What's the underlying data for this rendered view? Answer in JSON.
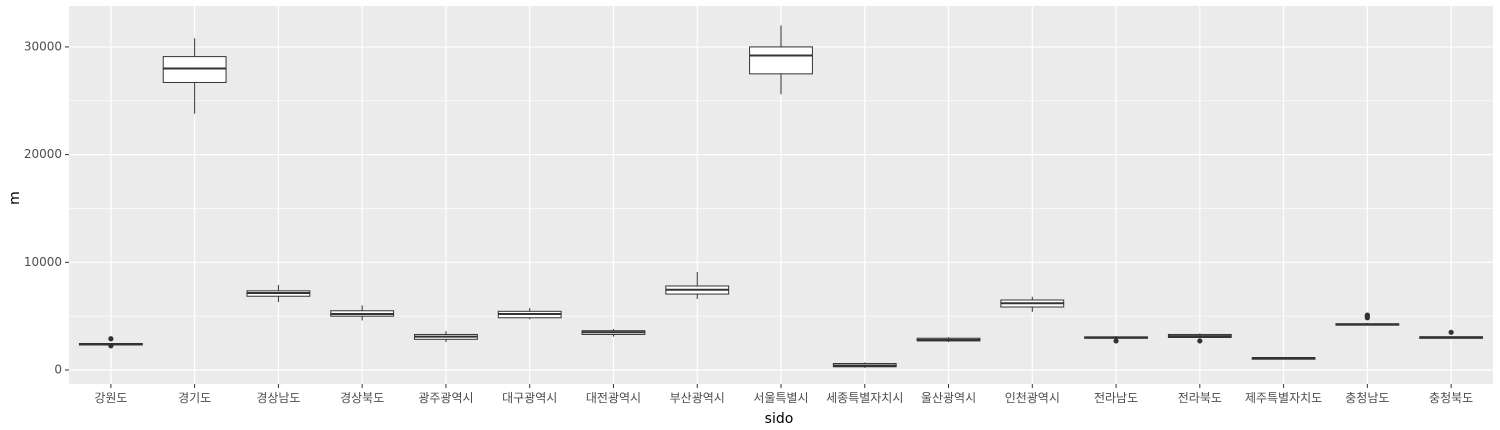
{
  "chart_data": {
    "type": "boxplot",
    "title": "",
    "xlabel": "sido",
    "ylabel": "m",
    "ylim": [
      -1300,
      33800
    ],
    "yticks": [
      0,
      10000,
      20000,
      30000
    ],
    "ytick_labels": [
      "0",
      "10000",
      "20000",
      "30000"
    ],
    "grid": true,
    "legend": "none",
    "categories": [
      "강원도",
      "경기도",
      "경상남도",
      "경상북도",
      "광주광역시",
      "대구광역시",
      "대전광역시",
      "부산광역시",
      "서울특별시",
      "세종특별자치시",
      "울산광역시",
      "인천광역시",
      "전라남도",
      "전라북도",
      "제주특별자치도",
      "충청남도",
      "충청북도"
    ],
    "boxes": [
      {
        "min": 2380,
        "q1": 2380,
        "median": 2420,
        "q3": 2460,
        "max": 2480,
        "outliers": [
          2250,
          2900
        ]
      },
      {
        "min": 23800,
        "q1": 26700,
        "median": 28000,
        "q3": 29100,
        "max": 30800,
        "outliers": []
      },
      {
        "min": 6300,
        "q1": 6850,
        "median": 7150,
        "q3": 7350,
        "max": 7900,
        "outliers": []
      },
      {
        "min": 4600,
        "q1": 5000,
        "median": 5200,
        "q3": 5500,
        "max": 6000,
        "outliers": []
      },
      {
        "min": 2600,
        "q1": 2850,
        "median": 3100,
        "q3": 3300,
        "max": 3600,
        "outliers": []
      },
      {
        "min": 4700,
        "q1": 4850,
        "median": 5200,
        "q3": 5450,
        "max": 5750,
        "outliers": []
      },
      {
        "min": 3100,
        "q1": 3300,
        "median": 3500,
        "q3": 3650,
        "max": 3800,
        "outliers": []
      },
      {
        "min": 6600,
        "q1": 7050,
        "median": 7450,
        "q3": 7800,
        "max": 9100,
        "outliers": []
      },
      {
        "min": 25600,
        "q1": 27500,
        "median": 29200,
        "q3": 30000,
        "max": 32000,
        "outliers": []
      },
      {
        "min": 200,
        "q1": 300,
        "median": 420,
        "q3": 600,
        "max": 700,
        "outliers": []
      },
      {
        "min": 2600,
        "q1": 2700,
        "median": 2800,
        "q3": 2950,
        "max": 3050,
        "outliers": []
      },
      {
        "min": 5400,
        "q1": 5850,
        "median": 6200,
        "q3": 6500,
        "max": 6800,
        "outliers": []
      },
      {
        "min": 2900,
        "q1": 2960,
        "median": 3020,
        "q3": 3080,
        "max": 3150,
        "outliers": [
          2700
        ]
      },
      {
        "min": 2950,
        "q1": 3020,
        "median": 3150,
        "q3": 3300,
        "max": 3400,
        "outliers": [
          2700
        ]
      },
      {
        "min": 1080,
        "q1": 1100,
        "median": 1120,
        "q3": 1140,
        "max": 1160,
        "outliers": []
      },
      {
        "min": 4150,
        "q1": 4180,
        "median": 4230,
        "q3": 4300,
        "max": 4380,
        "outliers": [
          4850,
          5000,
          5100
        ]
      },
      {
        "min": 2950,
        "q1": 2990,
        "median": 3040,
        "q3": 3080,
        "max": 3120,
        "outliers": [
          3500
        ]
      }
    ]
  }
}
